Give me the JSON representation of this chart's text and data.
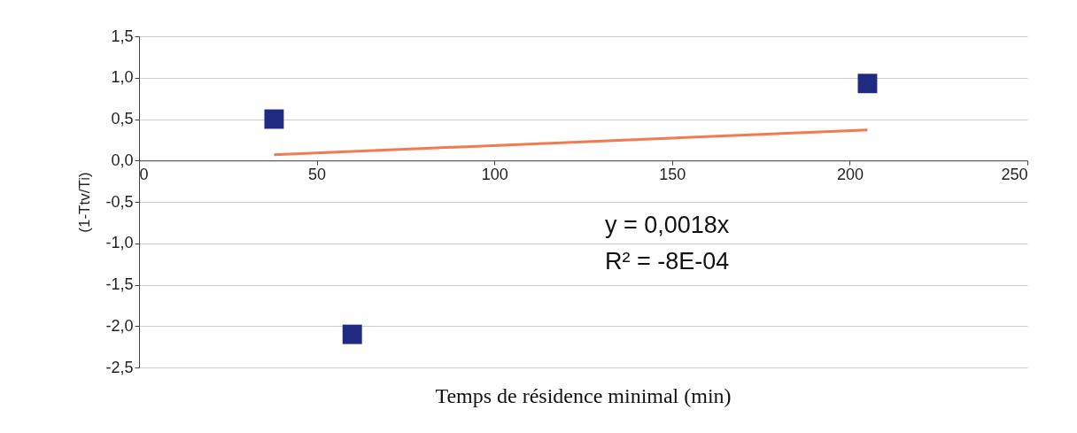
{
  "chart_data": {
    "type": "scatter",
    "xlabel": "Temps de résidence minimal (min)",
    "ylabel": "(1-Ttv/Ti)",
    "xlim": [
      0,
      250
    ],
    "xticks": [
      0,
      50,
      100,
      150,
      200,
      250
    ],
    "ylim": [
      -2.5,
      1.5
    ],
    "yticks": [
      {
        "value": -2.5,
        "label": "-2,5"
      },
      {
        "value": -2,
        "label": "-2,0"
      },
      {
        "value": -1.5,
        "label": "-1,5"
      },
      {
        "value": -1,
        "label": "-1,0"
      },
      {
        "value": -0.5,
        "label": "-0,5"
      },
      {
        "value": 0,
        "label": "0,0"
      },
      {
        "value": 0.5,
        "label": "0,5"
      },
      {
        "value": 1,
        "label": "1,0"
      },
      {
        "value": 1.5,
        "label": "1,5"
      }
    ],
    "grid": "y",
    "series": [
      {
        "color": "#1f2a80",
        "marker": "square",
        "x": [
          38,
          60,
          205
        ],
        "values": [
          0.5,
          -2.1,
          0.93
        ]
      },
      {
        "type": "line",
        "color": "#f47850",
        "x": [
          38,
          205
        ],
        "values": [
          0.07,
          0.37
        ]
      }
    ],
    "annotations": [
      "y = 0,0018x",
      "R² = -8E-04"
    ]
  }
}
